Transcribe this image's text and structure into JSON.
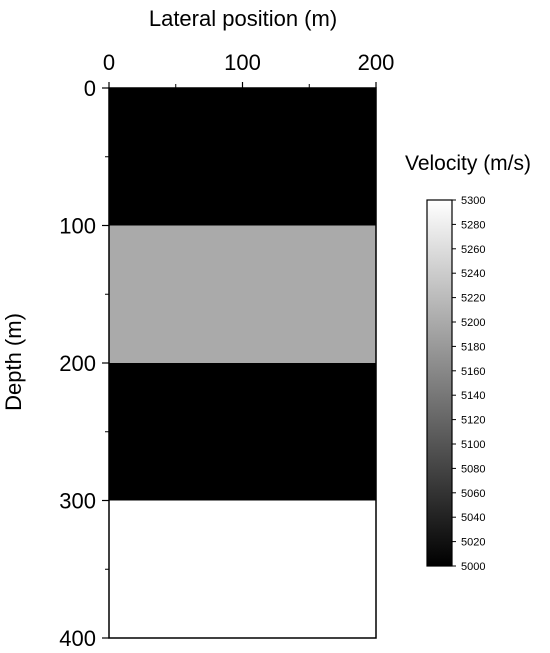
{
  "chart_data": {
    "type": "heatmap",
    "xlabel": "Lateral position (m)",
    "ylabel": "Depth (m)",
    "xlim": [
      0,
      200
    ],
    "ylim": [
      0,
      400
    ],
    "x_ticks": [
      {
        "value": 0,
        "label": "0"
      },
      {
        "value": 100,
        "label": "100"
      },
      {
        "value": 200,
        "label": "200"
      }
    ],
    "y_ticks": [
      {
        "value": 0,
        "label": "0"
      },
      {
        "value": 100,
        "label": "100"
      },
      {
        "value": 200,
        "label": "200"
      },
      {
        "value": 300,
        "label": "300"
      },
      {
        "value": 400,
        "label": "400"
      }
    ],
    "layers": [
      {
        "depth_top": 0,
        "depth_bottom": 100,
        "velocity": 5000
      },
      {
        "depth_top": 100,
        "depth_bottom": 200,
        "velocity": 5200
      },
      {
        "depth_top": 200,
        "depth_bottom": 300,
        "velocity": 5000
      },
      {
        "depth_top": 300,
        "depth_bottom": 400,
        "velocity": 5300
      }
    ],
    "colorbar": {
      "title": "Velocity (m/s)",
      "min": 5000,
      "max": 5300,
      "colormap": "grayscale",
      "ticks": [
        {
          "value": 5300,
          "label": "5300"
        },
        {
          "value": 5280,
          "label": "5280"
        },
        {
          "value": 5260,
          "label": "5260"
        },
        {
          "value": 5240,
          "label": "5240"
        },
        {
          "value": 5220,
          "label": "5220"
        },
        {
          "value": 5200,
          "label": "5200"
        },
        {
          "value": 5180,
          "label": "5180"
        },
        {
          "value": 5160,
          "label": "5160"
        },
        {
          "value": 5140,
          "label": "5140"
        },
        {
          "value": 5120,
          "label": "5120"
        },
        {
          "value": 5100,
          "label": "5100"
        },
        {
          "value": 5080,
          "label": "5080"
        },
        {
          "value": 5060,
          "label": "5060"
        },
        {
          "value": 5040,
          "label": "5040"
        },
        {
          "value": 5020,
          "label": "5020"
        },
        {
          "value": 5000,
          "label": "5000"
        }
      ]
    },
    "grid": false,
    "legend": "right"
  }
}
